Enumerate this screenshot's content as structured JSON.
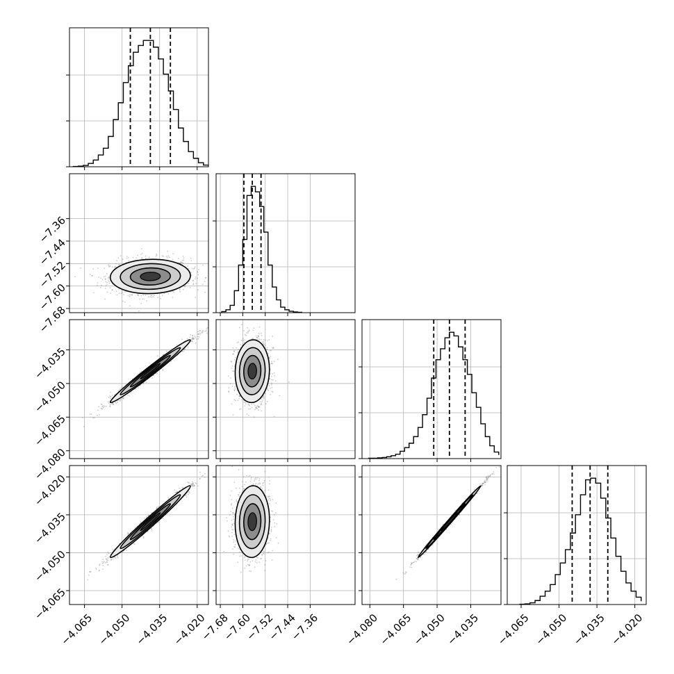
{
  "chart_data": {
    "type": "corner",
    "grid": true,
    "params": [
      {
        "range": [
          -4.071,
          -4.0155
        ],
        "ticks": [
          -4.065,
          -4.05,
          -4.035,
          -4.02
        ],
        "tick_labels": [
          "−4.065",
          "−4.050",
          "−4.035",
          "−4.020"
        ],
        "quantiles": [
          -4.0467,
          -4.0387,
          -4.0307
        ],
        "histogram": {
          "bin_edges": [
            -4.0695,
            -4.0675,
            -4.0655,
            -4.0635,
            -4.0615,
            -4.0595,
            -4.0575,
            -4.0555,
            -4.0535,
            -4.0515,
            -4.0495,
            -4.0475,
            -4.0455,
            -4.0435,
            -4.0415,
            -4.0395,
            -4.0375,
            -4.0355,
            -4.0335,
            -4.0315,
            -4.0295,
            -4.0275,
            -4.0255,
            -4.0235,
            -4.0215,
            -4.0195,
            -4.0175,
            -4.0155
          ],
          "counts": [
            1,
            2,
            4,
            10,
            20,
            35,
            55,
            90,
            140,
            190,
            250,
            300,
            340,
            360,
            375,
            375,
            355,
            320,
            275,
            225,
            170,
            115,
            75,
            45,
            25,
            12,
            5
          ]
        }
      },
      {
        "range": [
          -7.695,
          -7.2
        ],
        "ticks": [
          -7.68,
          -7.6,
          -7.52,
          -7.44,
          -7.36
        ],
        "tick_labels": [
          "−7.68",
          "−7.60",
          "−7.52",
          "−7.44",
          "−7.36"
        ],
        "quantiles": [
          -7.596,
          -7.566,
          -7.535
        ],
        "histogram": {
          "bin_edges": [
            -7.675,
            -7.66,
            -7.645,
            -7.63,
            -7.615,
            -7.6,
            -7.585,
            -7.57,
            -7.555,
            -7.54,
            -7.525,
            -7.51,
            -7.495,
            -7.48,
            -7.465,
            -7.45,
            -7.435,
            -7.42,
            -7.405,
            -7.39
          ],
          "counts": [
            3,
            8,
            20,
            60,
            130,
            200,
            320,
            345,
            330,
            290,
            220,
            130,
            70,
            35,
            15,
            8,
            4,
            2,
            1
          ]
        }
      },
      {
        "range": [
          -4.0835,
          -4.0215
        ],
        "ticks": [
          -4.08,
          -4.065,
          -4.05,
          -4.035
        ],
        "tick_labels": [
          "−4.080",
          "−4.065",
          "−4.050",
          "−4.035"
        ],
        "quantiles": [
          -4.0515,
          -4.0445,
          -4.0375
        ],
        "histogram": {
          "bin_edges": [
            -4.0805,
            -4.0785,
            -4.0765,
            -4.0745,
            -4.0725,
            -4.0705,
            -4.0685,
            -4.0665,
            -4.0645,
            -4.0625,
            -4.0605,
            -4.0585,
            -4.0565,
            -4.0545,
            -4.0525,
            -4.0505,
            -4.0485,
            -4.0465,
            -4.0445,
            -4.0425,
            -4.0405,
            -4.0385,
            -4.0365,
            -4.0345,
            -4.0325,
            -4.0305,
            -4.0285,
            -4.0265,
            -4.0245,
            -4.0225
          ],
          "counts": [
            1,
            1,
            2,
            3,
            5,
            8,
            12,
            20,
            30,
            42,
            60,
            85,
            120,
            165,
            220,
            270,
            300,
            330,
            345,
            335,
            305,
            270,
            230,
            180,
            140,
            95,
            60,
            35,
            18,
            10
          ]
        }
      },
      {
        "range": [
          -4.0705,
          -4.0155
        ],
        "ticks": [
          -4.065,
          -4.05,
          -4.035,
          -4.02
        ],
        "tick_labels": [
          "−4.065",
          "−4.050",
          "−4.035",
          "−4.020"
        ],
        "quantiles": [
          -4.0448,
          -4.0377,
          -4.0307
        ],
        "histogram": {
          "bin_edges": [
            -4.0655,
            -4.0635,
            -4.0615,
            -4.0595,
            -4.0575,
            -4.0555,
            -4.0535,
            -4.0515,
            -4.0495,
            -4.0475,
            -4.0455,
            -4.0435,
            -4.0415,
            -4.0395,
            -4.0375,
            -4.0355,
            -4.0335,
            -4.0315,
            -4.0295,
            -4.0275,
            -4.0255,
            -4.0235,
            -4.0215,
            -4.0195,
            -4.0175
          ],
          "counts": [
            1,
            2,
            5,
            12,
            25,
            40,
            60,
            90,
            125,
            165,
            215,
            270,
            330,
            375,
            380,
            365,
            320,
            260,
            200,
            145,
            100,
            65,
            40,
            22,
            10
          ]
        }
      }
    ],
    "pairs": [
      {
        "row": 1,
        "col": 0,
        "center": [
          -4.0387,
          -7.566
        ],
        "sigma": [
          0.008,
          0.0305
        ],
        "rho": 0.05
      },
      {
        "row": 2,
        "col": 0,
        "center": [
          -4.0387,
          -4.0445
        ],
        "sigma": [
          0.008,
          0.007
        ],
        "rho": 0.985
      },
      {
        "row": 2,
        "col": 1,
        "center": [
          -7.566,
          -4.0445
        ],
        "sigma": [
          0.0305,
          0.007
        ],
        "rho": 0.05
      },
      {
        "row": 3,
        "col": 0,
        "center": [
          -4.0387,
          -4.0377
        ],
        "sigma": [
          0.008,
          0.0071
        ],
        "rho": 0.985
      },
      {
        "row": 3,
        "col": 1,
        "center": [
          -7.566,
          -4.0377
        ],
        "sigma": [
          0.0305,
          0.0071
        ],
        "rho": 0.05
      },
      {
        "row": 3,
        "col": 2,
        "center": [
          -4.0445,
          -4.0377
        ],
        "sigma": [
          0.007,
          0.0071
        ],
        "rho": 0.997
      }
    ]
  }
}
